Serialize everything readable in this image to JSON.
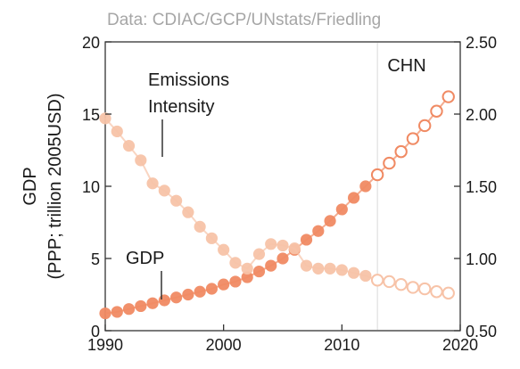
{
  "chart_data": {
    "type": "scatter",
    "source_text": "Data: CDIAC/GCP/UNstats/Friedling",
    "region_label": "CHN",
    "ylabel_line1": "GDP",
    "ylabel_line2": "(PPP; trillion 2005USD)",
    "xlim": [
      1990,
      2020
    ],
    "ylim_left": [
      0,
      20
    ],
    "ylim_right": [
      0.5,
      2.5
    ],
    "x_ticks": [
      "1990",
      "2000",
      "2010",
      "2020"
    ],
    "y_left_ticks": [
      "0",
      "5",
      "10",
      "15",
      "20"
    ],
    "y_right_ticks": [
      "0.50",
      "1.00",
      "1.50",
      "2.00",
      "2.50"
    ],
    "projection_start_year": 2013,
    "grid": false,
    "colors": {
      "gdp": "#f08a63",
      "intensity": "#f7c3a8",
      "divider": "#d9d9d9"
    },
    "series": [
      {
        "name": "GDP",
        "annotation": "GDP",
        "axis": "left",
        "x": [
          1990,
          1991,
          1992,
          1993,
          1994,
          1995,
          1996,
          1997,
          1998,
          1999,
          2000,
          2001,
          2002,
          2003,
          2004,
          2005,
          2006,
          2007,
          2008,
          2009,
          2010,
          2011,
          2012,
          2013,
          2014,
          2015,
          2016,
          2017,
          2018,
          2019
        ],
        "y": [
          1.2,
          1.3,
          1.5,
          1.7,
          1.9,
          2.1,
          2.3,
          2.5,
          2.7,
          2.9,
          3.2,
          3.4,
          3.7,
          4.1,
          4.5,
          5.0,
          5.6,
          6.3,
          6.9,
          7.6,
          8.4,
          9.2,
          10.0,
          10.8,
          11.6,
          12.4,
          13.3,
          14.2,
          15.2,
          16.2
        ],
        "projected_from": 2013
      },
      {
        "name": "Emissions Intensity",
        "annotation_line1": "Emissions",
        "annotation_line2": "Intensity",
        "axis": "right",
        "x": [
          1990,
          1991,
          1992,
          1993,
          1994,
          1995,
          1996,
          1997,
          1998,
          1999,
          2000,
          2001,
          2002,
          2003,
          2004,
          2005,
          2006,
          2007,
          2008,
          2009,
          2010,
          2011,
          2012,
          2013,
          2014,
          2015,
          2016,
          2017,
          2018,
          2019
        ],
        "y": [
          1.97,
          1.88,
          1.78,
          1.68,
          1.52,
          1.47,
          1.4,
          1.32,
          1.22,
          1.14,
          1.06,
          0.97,
          0.93,
          1.03,
          1.1,
          1.09,
          1.07,
          0.95,
          0.93,
          0.93,
          0.92,
          0.9,
          0.88,
          0.85,
          0.84,
          0.82,
          0.8,
          0.79,
          0.77,
          0.76
        ],
        "projected_from": 2013
      }
    ]
  }
}
